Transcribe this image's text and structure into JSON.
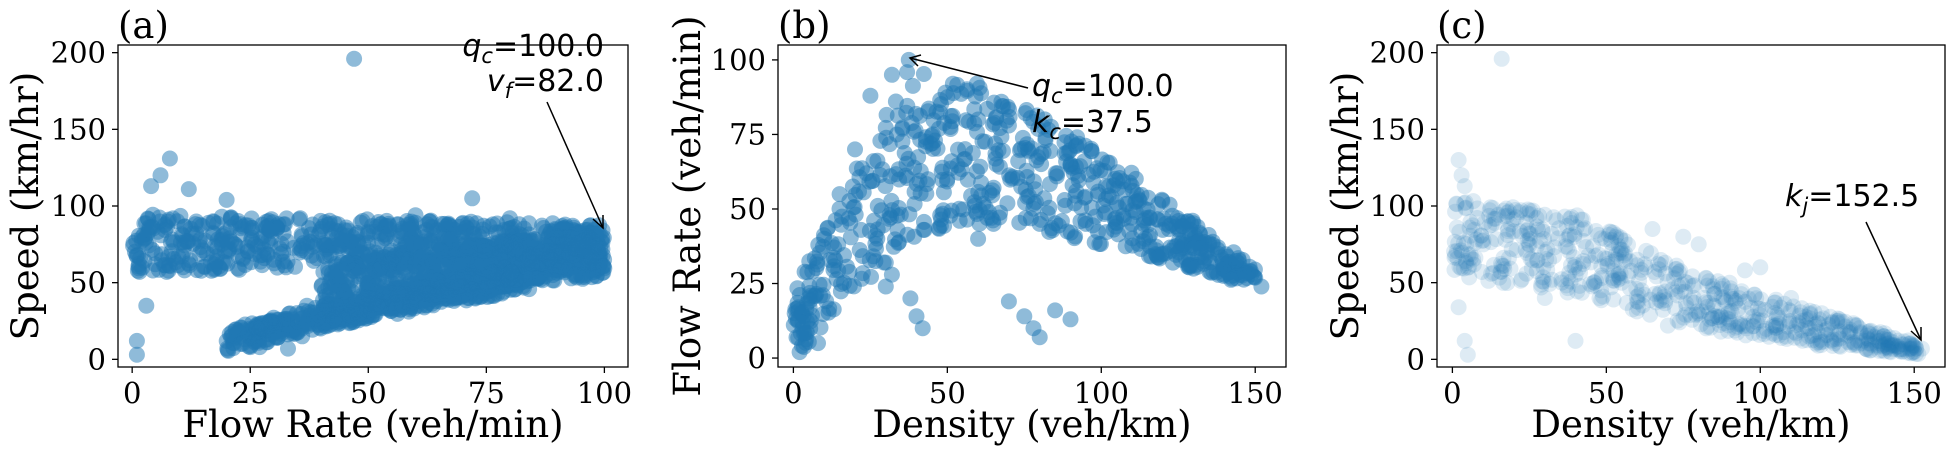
{
  "colors": {
    "point": "#1f77b4",
    "axis": "#000000",
    "background": "#ffffff"
  },
  "chart_data": [
    {
      "type": "scatter",
      "panel_label": "(a)",
      "xlabel": "Flow Rate (veh/min)",
      "ylabel": "Speed (km/hr)",
      "xlim": [
        -3,
        105
      ],
      "ylim": [
        -5,
        205
      ],
      "xticks": [
        0,
        25,
        50,
        75,
        100
      ],
      "yticks": [
        0,
        50,
        100,
        150,
        200
      ],
      "point_opacity": 0.5,
      "points": [
        [
          47,
          196
        ],
        [
          1,
          3
        ],
        [
          1,
          12
        ],
        [
          3,
          35
        ],
        [
          8,
          131
        ],
        [
          6,
          120
        ],
        [
          4,
          113
        ],
        [
          12,
          111
        ],
        [
          20,
          104
        ],
        [
          19,
          93
        ],
        [
          7,
          88
        ],
        [
          15,
          71
        ],
        [
          26,
          75
        ],
        [
          40,
          85
        ],
        [
          60,
          94
        ],
        [
          80,
          92
        ],
        [
          99,
          82
        ],
        [
          37,
          23
        ],
        [
          36,
          15
        ],
        [
          25,
          8
        ],
        [
          23,
          10
        ],
        [
          27,
          8
        ],
        [
          33,
          7
        ],
        [
          72,
          105
        ],
        [
          50,
          68
        ],
        [
          28,
          66
        ],
        [
          30,
          17
        ],
        [
          45,
          44
        ],
        [
          37,
          35
        ]
      ],
      "dense_regions": [
        {
          "type": "band",
          "x": [
            0,
            100
          ],
          "ybottom": [
            55,
            70
          ],
          "ytop": [
            95,
            88
          ]
        },
        {
          "type": "band",
          "x": [
            20,
            100
          ],
          "ybottom": [
            5,
            62
          ],
          "ytop": [
            20,
            80
          ]
        },
        {
          "type": "band",
          "x": [
            40,
            100
          ],
          "ybottom": [
            20,
            55
          ],
          "ytop": [
            62,
            85
          ]
        }
      ],
      "annotation": {
        "line1_sym": "q",
        "line1_sub": "c",
        "line1_val": "=100.0",
        "line2_sym": "v",
        "line2_sub": "f",
        "line2_val": "=82.0",
        "point": [
          100,
          82
        ]
      }
    },
    {
      "type": "scatter",
      "panel_label": "(b)",
      "xlabel": "Density (veh/km)",
      "ylabel": "Flow Rate (veh/min)",
      "xlim": [
        -5,
        160
      ],
      "ylim": [
        -3,
        105
      ],
      "xticks": [
        0,
        50,
        100,
        150
      ],
      "yticks": [
        0,
        25,
        50,
        75,
        100
      ],
      "point_opacity": 0.5,
      "points": [
        [
          37.5,
          100
        ],
        [
          32,
          95
        ],
        [
          25,
          88
        ],
        [
          20,
          70
        ],
        [
          15,
          55
        ],
        [
          10,
          40
        ],
        [
          5,
          20
        ],
        [
          3,
          10
        ],
        [
          2,
          2
        ],
        [
          8,
          5
        ],
        [
          30,
          32
        ],
        [
          30,
          24
        ],
        [
          32,
          28
        ],
        [
          38,
          20
        ],
        [
          40,
          14
        ],
        [
          42,
          10
        ],
        [
          70,
          19
        ],
        [
          75,
          14
        ],
        [
          78,
          10
        ],
        [
          80,
          7
        ],
        [
          90,
          13
        ],
        [
          85,
          16
        ],
        [
          60,
          40
        ],
        [
          65,
          45
        ],
        [
          80,
          45
        ],
        [
          95,
          45
        ],
        [
          110,
          45
        ],
        [
          120,
          35
        ],
        [
          130,
          30
        ],
        [
          140,
          28
        ],
        [
          150,
          27
        ],
        [
          152,
          24
        ],
        [
          50,
          60
        ],
        [
          60,
          80
        ],
        [
          70,
          78
        ],
        [
          90,
          65
        ]
      ],
      "dense_regions": [
        {
          "type": "band",
          "x": [
            0,
            37.5,
            60,
            100,
            150
          ],
          "ybottom": [
            0,
            40,
            45,
            38,
            24
          ],
          "ytop": [
            22,
            98,
            92,
            70,
            30
          ]
        }
      ],
      "annotation": {
        "line1_sym": "q",
        "line1_sub": "c",
        "line1_val": "=100.0",
        "line2_sym": "k",
        "line2_sub": "c",
        "line2_val": "=37.5",
        "point": [
          37.5,
          100
        ]
      }
    },
    {
      "type": "scatter",
      "panel_label": "(c)",
      "xlabel": "Density (veh/km)",
      "ylabel": "Speed (km/hr)",
      "xlim": [
        -5,
        160
      ],
      "ylim": [
        -5,
        205
      ],
      "xticks": [
        0,
        50,
        100,
        150
      ],
      "yticks": [
        0,
        50,
        100,
        150,
        200
      ],
      "point_opacity": 0.15,
      "points": [
        [
          16,
          196
        ],
        [
          2,
          130
        ],
        [
          3,
          120
        ],
        [
          4,
          113
        ],
        [
          2,
          34
        ],
        [
          4,
          12
        ],
        [
          5,
          3
        ],
        [
          65,
          85
        ],
        [
          75,
          80
        ],
        [
          80,
          75
        ],
        [
          95,
          58
        ],
        [
          100,
          60
        ],
        [
          110,
          40
        ],
        [
          120,
          30
        ],
        [
          125,
          25
        ],
        [
          140,
          15
        ],
        [
          150,
          8
        ],
        [
          152.5,
          7
        ],
        [
          40,
          12
        ],
        [
          30,
          40
        ],
        [
          55,
          50
        ],
        [
          90,
          50
        ],
        [
          70,
          22
        ],
        [
          60,
          65
        ]
      ],
      "dense_regions": [
        {
          "type": "band",
          "x": [
            0,
            40,
            80,
            120,
            152
          ],
          "ybottom": [
            55,
            42,
            20,
            8,
            3
          ],
          "ytop": [
            105,
            95,
            55,
            30,
            10
          ]
        }
      ],
      "annotation": {
        "line1_sym": "k",
        "line1_sub": "j",
        "line1_val": "=152.5",
        "point": [
          152.5,
          7
        ]
      }
    }
  ]
}
